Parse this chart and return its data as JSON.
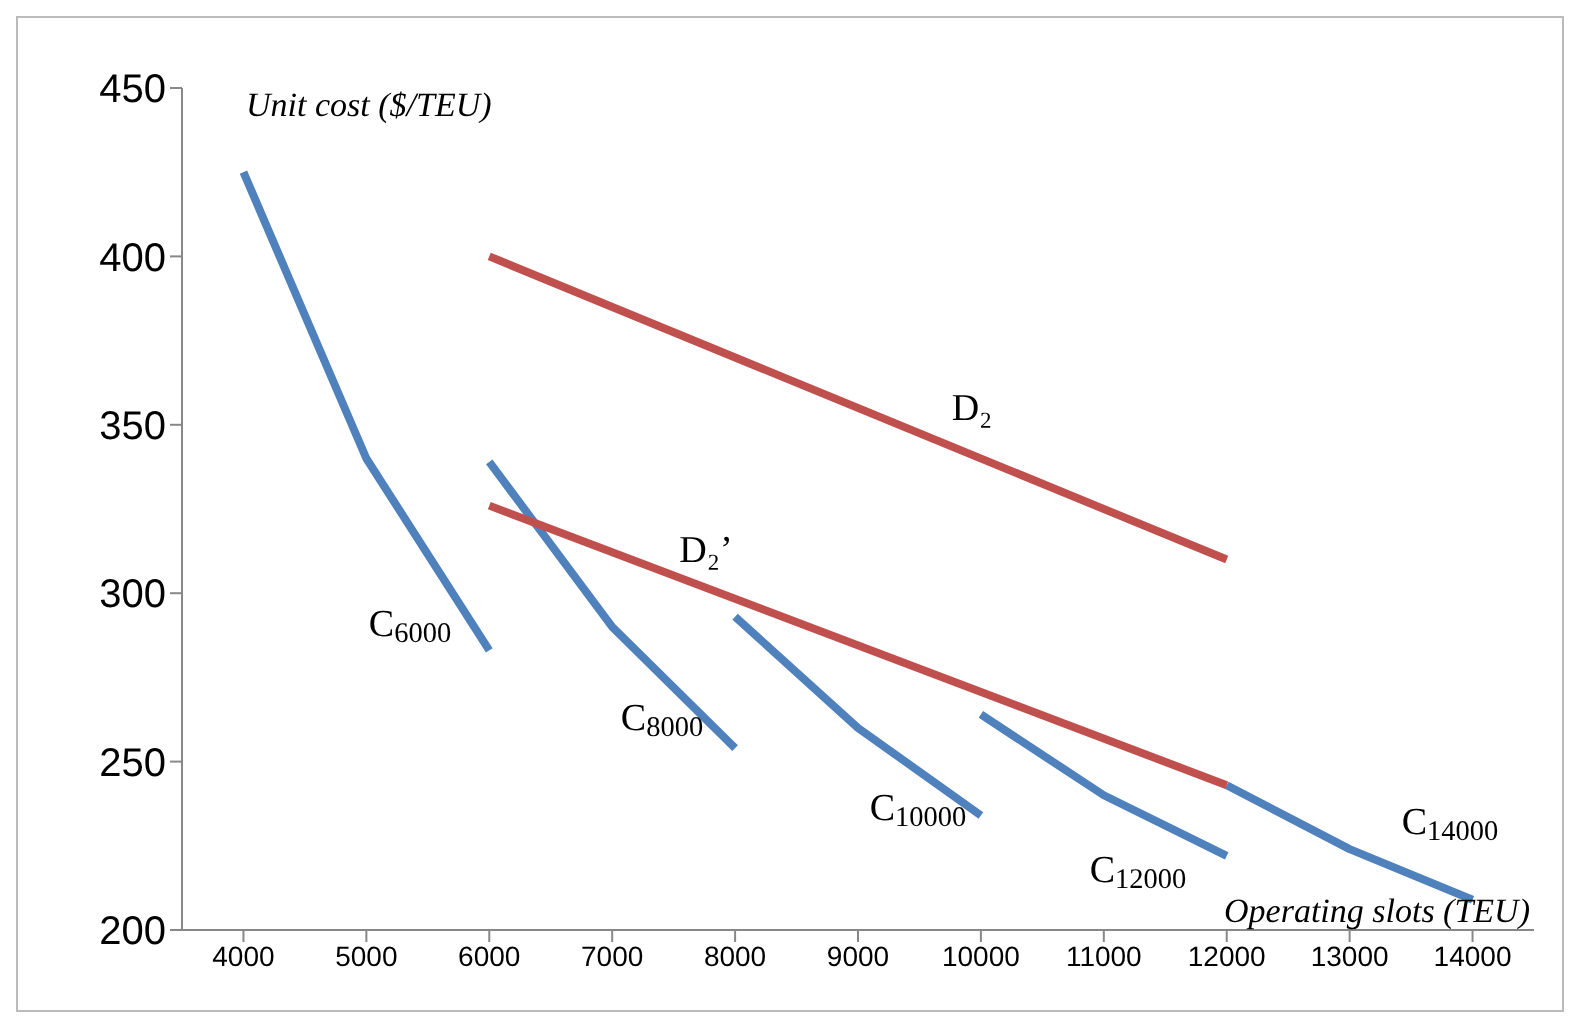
{
  "chart_data": {
    "type": "line",
    "ylabel": "Unit cost ($/TEU)",
    "xlabel": "Operating slots (TEU)",
    "xlim": [
      3500,
      14500
    ],
    "xticks": [
      4000,
      5000,
      6000,
      7000,
      8000,
      9000,
      10000,
      11000,
      12000,
      13000,
      14000
    ],
    "ylim": [
      200,
      450
    ],
    "yticks": [
      200,
      250,
      300,
      350,
      400,
      450
    ],
    "grid": false,
    "legend": false,
    "marker": "none",
    "line_style": "solid",
    "series": [
      {
        "color": "#4f81bd",
        "x": [
          4000,
          5000,
          6000
        ],
        "values": [
          425,
          340,
          283
        ]
      },
      {
        "color": "#4f81bd",
        "x": [
          6000,
          7000,
          8000
        ],
        "values": [
          339,
          290,
          254
        ]
      },
      {
        "color": "#4f81bd",
        "x": [
          8000,
          9000,
          10000
        ],
        "values": [
          293,
          260,
          234
        ]
      },
      {
        "color": "#4f81bd",
        "x": [
          10000,
          11000,
          12000
        ],
        "values": [
          264,
          240,
          222
        ]
      },
      {
        "color": "#4f81bd",
        "x": [
          12000,
          13000,
          14000
        ],
        "values": [
          243,
          224,
          209
        ]
      },
      {
        "color": "#c0504d",
        "x": [
          6000,
          12000
        ],
        "values": [
          400,
          310
        ]
      },
      {
        "color": "#c0504d",
        "x": [
          6000,
          12000
        ],
        "values": [
          326,
          243
        ]
      }
    ],
    "annotations": [
      "D₂",
      "D₂’",
      "C$_{6000}$",
      "C$_{8000}$",
      "C$_{10000}$",
      "C$_{12000}$",
      "C$_{14000}$"
    ]
  }
}
